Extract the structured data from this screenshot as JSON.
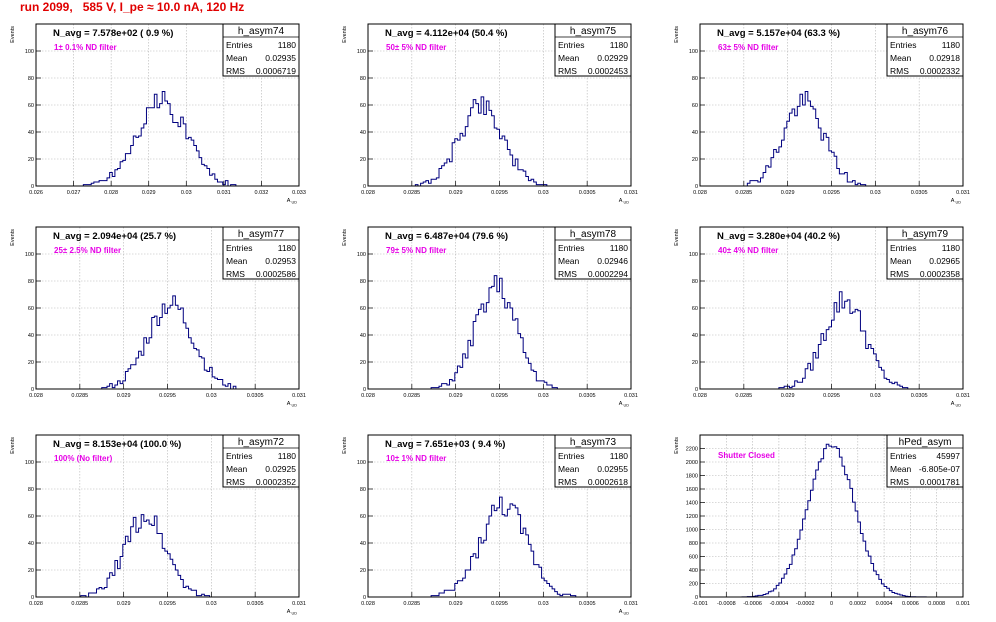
{
  "title": "run 2099,   585 V, I_pe ≈ 10.0 nA, 120 Hz",
  "stats_labels": {
    "entries": "Entries",
    "mean": "Mean",
    "rms": "RMS"
  },
  "colors": {
    "histogram": "#00007f",
    "annotation": "#e600e6",
    "title": "#e00000",
    "grid": "#b4b4b4"
  },
  "chart_data": [
    {
      "type": "histogram",
      "name": "h_asym74",
      "navg": "N_avg = 7.578e+02 ( 0.9 %)",
      "filter": "1± 0.1% ND filter",
      "entries": "1180",
      "mean": "0.02935",
      "rms": "0.0006719",
      "xlabel": "A_UD",
      "ylabel": "Events",
      "xlim": [
        0.026,
        0.033
      ],
      "ylim": [
        0,
        120
      ],
      "xticks": [
        "0.026",
        "0.027",
        "0.028",
        "0.029",
        "0.03",
        "0.031",
        "0.032",
        "0.033"
      ],
      "yticks": [
        "0",
        "20",
        "40",
        "60",
        "80",
        "100"
      ],
      "center": 0.02935,
      "sigma": 0.00067,
      "peak": 62,
      "seed": 74
    },
    {
      "type": "histogram",
      "name": "h_asym75",
      "navg": "N_avg = 4.112e+04 (50.4 %)",
      "filter": "50± 5% ND filter",
      "entries": "1180",
      "mean": "0.02929",
      "rms": "0.0002453",
      "xlabel": "A_UD",
      "ylabel": "Events",
      "xlim": [
        0.028,
        0.031
      ],
      "ylim": [
        0,
        120
      ],
      "xticks": [
        "0.028",
        "0.0285",
        "0.029",
        "0.0295",
        "0.03",
        "0.0305",
        "0.031"
      ],
      "yticks": [
        "0",
        "20",
        "40",
        "60",
        "80",
        "100"
      ],
      "center": 0.02929,
      "sigma": 0.000245,
      "peak": 61,
      "seed": 75
    },
    {
      "type": "histogram",
      "name": "h_asym76",
      "navg": "N_avg = 5.157e+04 (63.3 %)",
      "filter": "63± 5% ND filter",
      "entries": "1180",
      "mean": "0.02918",
      "rms": "0.0002332",
      "xlabel": "A_UD",
      "ylabel": "Events",
      "xlim": [
        0.028,
        0.031
      ],
      "ylim": [
        0,
        120
      ],
      "xticks": [
        "0.028",
        "0.0285",
        "0.029",
        "0.0295",
        "0.03",
        "0.0305",
        "0.031"
      ],
      "yticks": [
        "0",
        "20",
        "40",
        "60",
        "80",
        "100"
      ],
      "center": 0.02918,
      "sigma": 0.000233,
      "peak": 62,
      "seed": 76
    },
    {
      "type": "histogram",
      "name": "h_asym77",
      "navg": "N_avg = 2.094e+04 (25.7 %)",
      "filter": "25± 2.5% ND filter",
      "entries": "1180",
      "mean": "0.02953",
      "rms": "0.0002586",
      "xlabel": "A_UD",
      "ylabel": "Events",
      "xlim": [
        0.028,
        0.031
      ],
      "ylim": [
        0,
        120
      ],
      "xticks": [
        "0.028",
        "0.0285",
        "0.029",
        "0.0295",
        "0.03",
        "0.0305",
        "0.031"
      ],
      "yticks": [
        "0",
        "20",
        "40",
        "60",
        "80",
        "100"
      ],
      "center": 0.02953,
      "sigma": 0.000259,
      "peak": 63,
      "seed": 77
    },
    {
      "type": "histogram",
      "name": "h_asym78",
      "navg": "N_avg = 6.487e+04 (79.6 %)",
      "filter": "79± 5% ND filter",
      "entries": "1180",
      "mean": "0.02946",
      "rms": "0.0002294",
      "xlabel": "A_UD",
      "ylabel": "Events",
      "xlim": [
        0.028,
        0.031
      ],
      "ylim": [
        0,
        120
      ],
      "xticks": [
        "0.028",
        "0.0285",
        "0.029",
        "0.0295",
        "0.03",
        "0.0305",
        "0.031"
      ],
      "yticks": [
        "0",
        "20",
        "40",
        "60",
        "80",
        "100"
      ],
      "center": 0.02946,
      "sigma": 0.000229,
      "peak": 76,
      "seed": 78
    },
    {
      "type": "histogram",
      "name": "h_asym79",
      "navg": "N_avg = 3.280e+04 (40.2 %)",
      "filter": "40± 4% ND filter",
      "entries": "1180",
      "mean": "0.02965",
      "rms": "0.0002358",
      "xlabel": "A_UD",
      "ylabel": "Events",
      "xlim": [
        0.028,
        0.031
      ],
      "ylim": [
        0,
        120
      ],
      "xticks": [
        "0.028",
        "0.0285",
        "0.029",
        "0.0295",
        "0.03",
        "0.0305",
        "0.031"
      ],
      "yticks": [
        "0",
        "20",
        "40",
        "60",
        "80",
        "100"
      ],
      "center": 0.02965,
      "sigma": 0.000236,
      "peak": 66,
      "seed": 79
    },
    {
      "type": "histogram",
      "name": "h_asym72",
      "navg": "N_avg = 8.153e+04 (100.0 %)",
      "filter": "100% (No filter)",
      "entries": "1180",
      "mean": "0.02925",
      "rms": "0.0002352",
      "xlabel": "A_UD",
      "ylabel": "Events",
      "xlim": [
        0.028,
        0.031
      ],
      "ylim": [
        0,
        120
      ],
      "xticks": [
        "0.028",
        "0.0285",
        "0.029",
        "0.0295",
        "0.03",
        "0.0305",
        "0.031"
      ],
      "yticks": [
        "0",
        "20",
        "40",
        "60",
        "80",
        "100"
      ],
      "center": 0.02925,
      "sigma": 0.000235,
      "peak": 60,
      "seed": 72
    },
    {
      "type": "histogram",
      "name": "h_asym73",
      "navg": "N_avg = 7.651e+03 ( 9.4 %)",
      "filter": "10± 1% ND filter",
      "entries": "1180",
      "mean": "0.02955",
      "rms": "0.0002618",
      "xlabel": "A_UD",
      "ylabel": "Events",
      "xlim": [
        0.028,
        0.031
      ],
      "ylim": [
        0,
        120
      ],
      "xticks": [
        "0.028",
        "0.0285",
        "0.029",
        "0.0295",
        "0.03",
        "0.0305",
        "0.031"
      ],
      "yticks": [
        "0",
        "20",
        "40",
        "60",
        "80",
        "100"
      ],
      "center": 0.02955,
      "sigma": 0.000262,
      "peak": 68,
      "seed": 73
    },
    {
      "type": "histogram",
      "name": "hPed_asym",
      "navg": "",
      "filter": "Shutter Closed",
      "entries": "45997",
      "mean": "-6.805e-07",
      "rms": "0.0001781",
      "xlabel": "",
      "ylabel": "Events",
      "xlim": [
        -0.001,
        0.001
      ],
      "ylim": [
        0,
        2400
      ],
      "xticks": [
        "-0.001",
        "-0.0008",
        "-0.0006",
        "-0.0004",
        "-0.0002",
        "0",
        "0.0002",
        "0.0004",
        "0.0006",
        "0.0008",
        "0.001"
      ],
      "yticks": [
        "0",
        "200",
        "400",
        "600",
        "800",
        "1000",
        "1200",
        "1400",
        "1600",
        "1800",
        "2000",
        "2200"
      ],
      "center": -7e-07,
      "sigma": 0.000178,
      "peak": 2250,
      "seed": 99
    }
  ]
}
